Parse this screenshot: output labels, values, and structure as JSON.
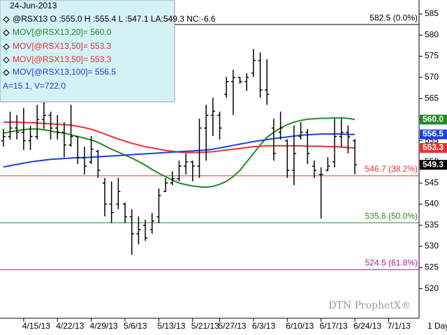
{
  "chart_data": {
    "type": "ohlc",
    "legend_lines": [
      {
        "text": "24-Jun-2013",
        "color": "#000000"
      },
      {
        "text": "@RSX13 O :555.0 H :555.4 L :547.1 LA:549.3 NC:-6.6",
        "color": "#000000"
      },
      {
        "text": "MOV[@RSX13,20]= 560.0",
        "color": "#228b22"
      },
      {
        "text": "MOV[@RSX13,50]= 553.3",
        "color": "#e8312f"
      },
      {
        "text": "MOV[@RSX13,50]= 553.3",
        "color": "#e8312f"
      },
      {
        "text": "MOV[@RSX13,100]= 556.5",
        "color": "#1f3fdf"
      },
      {
        "text": "A=15.1, V=722.0",
        "color": "#1f3fdf"
      }
    ],
    "categories": [
      null,
      null,
      null,
      "4/15/13",
      null,
      null,
      null,
      null,
      "4/22/13",
      null,
      null,
      null,
      null,
      "4/29/13",
      null,
      null,
      null,
      null,
      "5/6/13",
      null,
      null,
      null,
      null,
      "5/13/13",
      null,
      null,
      null,
      null,
      "5/21/13",
      null,
      null,
      null,
      "5/27/13",
      null,
      null,
      null,
      null,
      "6/3/13",
      null,
      null,
      null,
      null,
      "6/10/13",
      null,
      null,
      null,
      null,
      "6/17/13",
      null,
      null,
      null,
      null,
      "6/24/13",
      null,
      null,
      null,
      null,
      "7/1/13",
      null,
      null,
      null,
      null
    ],
    "x_unit_label": "1 Day",
    "ohlc": {
      "color": "#000000",
      "end_label": "549.3",
      "open": [
        555,
        556,
        558,
        557,
        555,
        556,
        560,
        561,
        558,
        557,
        554,
        556,
        551,
        550,
        552.5,
        545,
        540,
        540,
        540,
        537,
        533,
        535,
        534,
        537,
        543,
        545,
        546,
        549,
        550,
        549,
        558,
        561,
        561,
        566,
        569,
        570,
        569,
        571,
        574,
        567,
        558,
        557,
        555,
        548,
        556,
        557,
        549,
        547,
        548,
        550,
        556,
        557,
        555,
        null,
        null,
        null,
        null,
        null,
        null,
        null,
        null,
        null
      ],
      "high": [
        557.8,
        561.9,
        561.1,
        562.7,
        558.6,
        563.5,
        564.4,
        561.9,
        561.1,
        559.4,
        563.5,
        556.1,
        553.6,
        556.1,
        552.8,
        546.2,
        545.4,
        546.2,
        540.4,
        538.8,
        537.1,
        536.3,
        537.9,
        543.7,
        546.2,
        547.8,
        550.3,
        552,
        550.3,
        560.2,
        563.5,
        565.2,
        561.9,
        570.1,
        571.8,
        570.1,
        571,
        576.7,
        575.9,
        574.3,
        560.2,
        561.9,
        555.3,
        558.6,
        559.4,
        557.8,
        550.3,
        548.7,
        551.1,
        560.2,
        560.2,
        558.6,
        555.4,
        null,
        null,
        null,
        null,
        null,
        null,
        null,
        null,
        null
      ],
      "low": [
        553.6,
        555.3,
        555.3,
        552.8,
        552.8,
        555.3,
        557.8,
        555.3,
        555.3,
        551.1,
        553.6,
        549.5,
        547,
        549.5,
        546.2,
        537.1,
        535.5,
        538.8,
        535.5,
        528,
        530.5,
        531.3,
        533,
        535.5,
        542.9,
        544.5,
        545.4,
        547,
        545.4,
        546.2,
        550.3,
        556.1,
        555.3,
        565.2,
        561.1,
        568.5,
        566.8,
        570.1,
        565.2,
        563.5,
        550.3,
        555.3,
        546.2,
        544.5,
        555.3,
        549.5,
        546.2,
        536.6,
        547.8,
        548.7,
        553.6,
        552,
        547.1,
        null,
        null,
        null,
        null,
        null,
        null,
        null,
        null,
        null
      ],
      "close": [
        556,
        558,
        557,
        555,
        556,
        560,
        561,
        558,
        557,
        554,
        556,
        551,
        549,
        553,
        548,
        540,
        538,
        543,
        537,
        533,
        534,
        532,
        536,
        542,
        545,
        546,
        549,
        550,
        549,
        558,
        561,
        562,
        558,
        569,
        570,
        569,
        570,
        574,
        567,
        566,
        552,
        558,
        548,
        552,
        557,
        552,
        548,
        547,
        549,
        556,
        557,
        555.9,
        549.3,
        null,
        null,
        null,
        null,
        null,
        null,
        null,
        null,
        null
      ]
    },
    "series": [
      {
        "color": "#228b22",
        "end_label": "560.0",
        "values": [
          556.8,
          557.1,
          557.4,
          557.6,
          557.8,
          557.8,
          557.6,
          557.3,
          557,
          556.8,
          556.4,
          556,
          555.6,
          555.2,
          554.6,
          553.8,
          553,
          552.3,
          551.6,
          550.9,
          550.1,
          549.2,
          548.2,
          547.3,
          546.5,
          545.7,
          545,
          544.6,
          544.3,
          544.1,
          544,
          544.2,
          544.7,
          545.4,
          546.5,
          548,
          550,
          552,
          554,
          555.8,
          557,
          558,
          558.8,
          559.4,
          559.8,
          560.1,
          560.2,
          560.3,
          560.3,
          560.4,
          560.4,
          560.3,
          560,
          null,
          null,
          null,
          null,
          null,
          null,
          null,
          null,
          null
        ]
      },
      {
        "color": "#e8312f",
        "end_label": "553.3",
        "values": [
          559.4,
          559.4,
          559.4,
          559.3,
          559.3,
          559.2,
          559.1,
          559,
          558.9,
          558.8,
          558.7,
          558.4,
          558.1,
          557.7,
          557.2,
          556.6,
          556,
          555.4,
          554.9,
          554.4,
          554,
          553.6,
          553.3,
          553,
          552.7,
          552.5,
          552.3,
          552.2,
          552.2,
          552.2,
          552.3,
          552.4,
          552.6,
          552.8,
          553,
          553.2,
          553.4,
          553.6,
          553.7,
          553.8,
          553.8,
          553.8,
          553.8,
          553.8,
          553.8,
          553.7,
          553.7,
          553.7,
          553.6,
          553.6,
          553.5,
          553.4,
          553.3,
          null,
          null,
          null,
          null,
          null,
          null,
          null,
          null,
          null
        ]
      },
      {
        "color": "#1f3fdf",
        "end_label": "556.5",
        "values": [
          548.8,
          549.1,
          549.4,
          549.7,
          550,
          550.2,
          550.4,
          550.6,
          550.7,
          550.8,
          550.9,
          551,
          551,
          551.1,
          551.2,
          551.3,
          551.4,
          551.5,
          551.6,
          551.7,
          551.8,
          551.9,
          552,
          552.1,
          552.2,
          552.3,
          552.4,
          552.5,
          552.6,
          552.7,
          552.8,
          553,
          553.3,
          553.6,
          553.9,
          554.2,
          554.5,
          554.8,
          555,
          555.3,
          555.5,
          555.7,
          555.9,
          556.1,
          556.3,
          556.4,
          556.5,
          556.6,
          556.6,
          556.6,
          556.6,
          556.5,
          556.5,
          null,
          null,
          null,
          null,
          null,
          null,
          null,
          null,
          null
        ]
      }
    ],
    "levels": [
      {
        "value": 582.5,
        "label": "582.5 (0.0%)",
        "color": "#000000"
      },
      {
        "value": 546.7,
        "label": "546.7 (38.2%)",
        "color": "#e8312f"
      },
      {
        "value": 535.6,
        "label": "535.6 (50.0%)",
        "color": "#228b22"
      },
      {
        "value": 524.5,
        "label": "524.5 (61.8%)",
        "color": "#a020a0"
      }
    ],
    "ylim": [
      513,
      588.3
    ],
    "yticks": [
      520,
      525,
      530,
      535,
      540,
      545,
      550,
      555,
      560,
      565,
      570,
      575,
      580,
      585
    ],
    "watermark": "DTN ProphetX®"
  }
}
